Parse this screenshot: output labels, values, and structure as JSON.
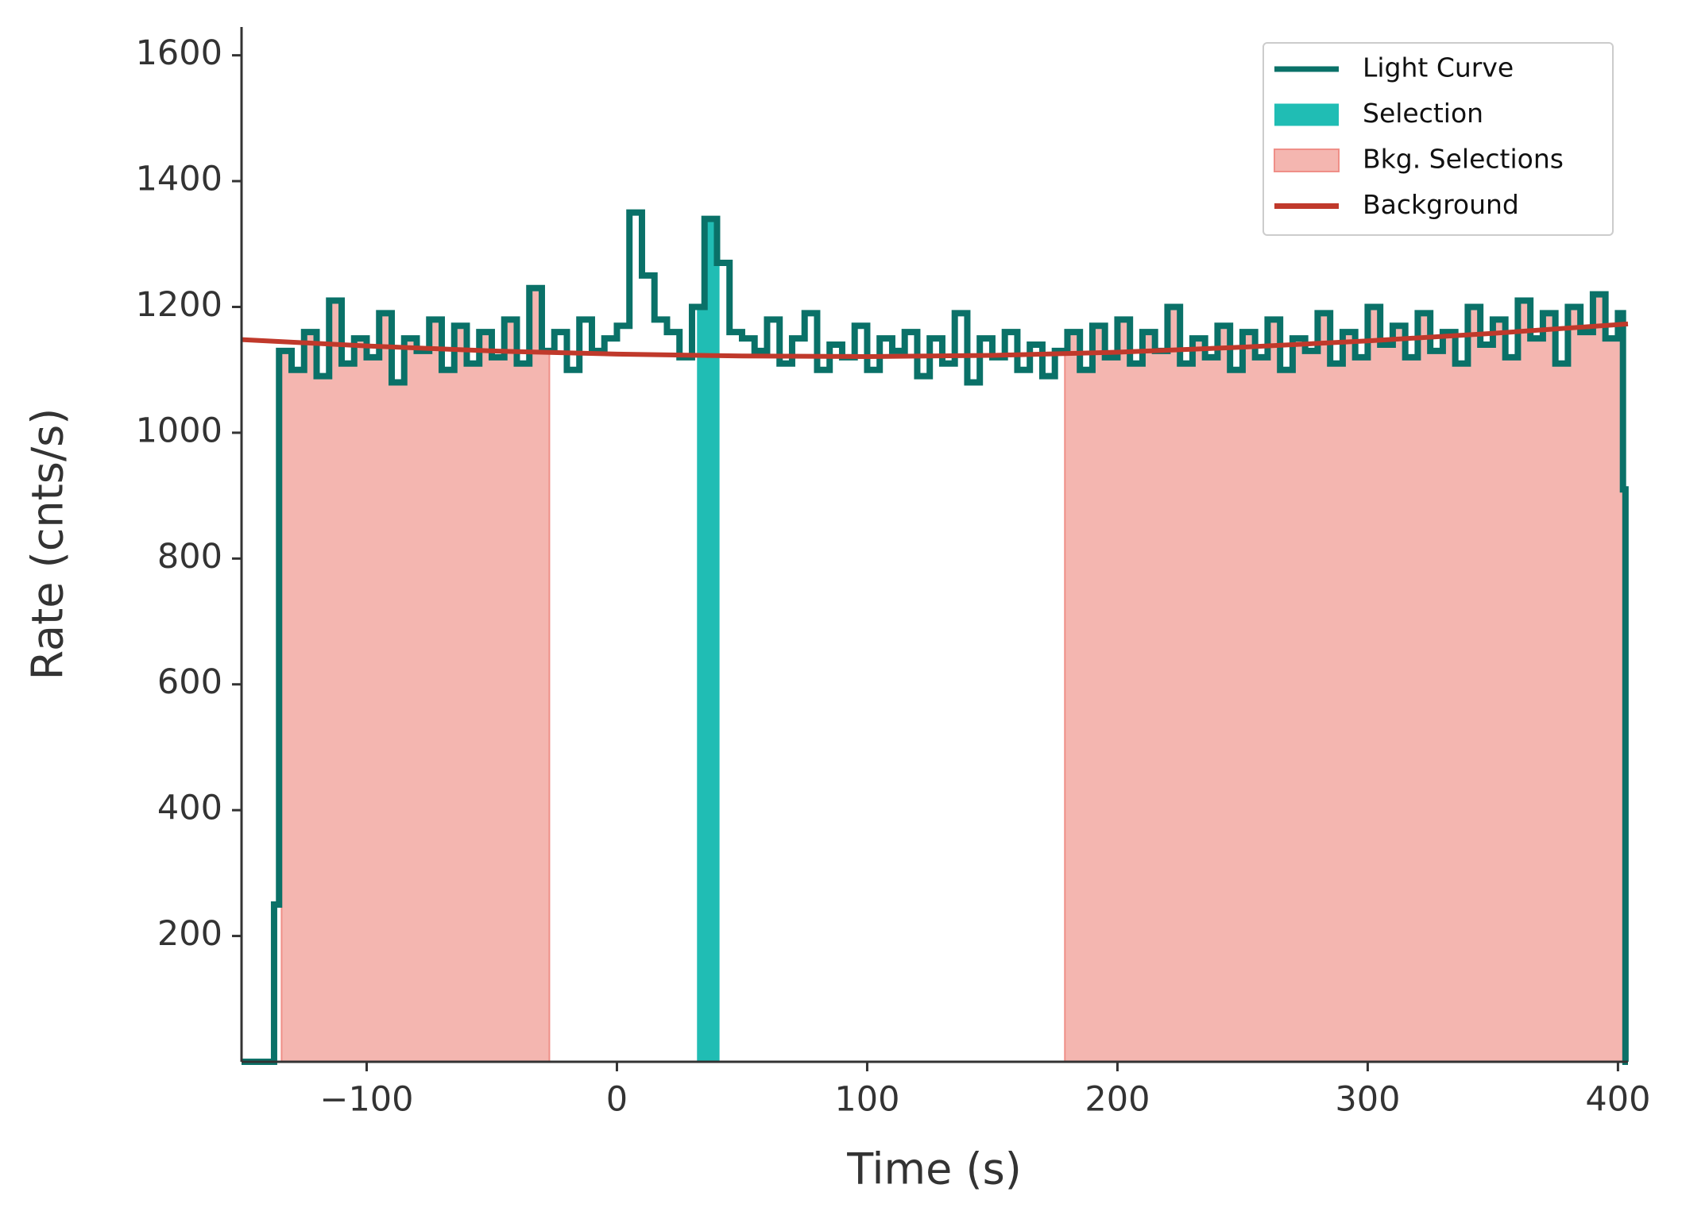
{
  "chart_data": {
    "type": "step",
    "x_label": "Time (s)",
    "y_label": "Rate (cnts/s)",
    "xlim": [
      -150,
      404
    ],
    "ylim": [
      0,
      1645
    ],
    "xticks": [
      {
        "value": -100,
        "label": "−100"
      },
      0,
      100,
      200,
      300,
      400
    ],
    "yticks": [
      200,
      400,
      600,
      800,
      1000,
      1200,
      1400,
      1600
    ],
    "legend": "upper right",
    "light_curve": {
      "name": "Light Curve",
      "color": "#0a7168",
      "x": [
        -150,
        -137,
        -135,
        -130,
        -125,
        -120,
        -115,
        -110,
        -105,
        -100,
        -95,
        -90,
        -85,
        -80,
        -75,
        -70,
        -65,
        -60,
        -55,
        -50,
        -45,
        -40,
        -35,
        -30,
        -25,
        -20,
        -15,
        -10,
        -5,
        0,
        5,
        10,
        15,
        20,
        25,
        30,
        35,
        40,
        45,
        50,
        55,
        60,
        65,
        70,
        75,
        80,
        85,
        90,
        95,
        100,
        105,
        110,
        115,
        120,
        125,
        130,
        135,
        140,
        145,
        150,
        155,
        160,
        165,
        170,
        175,
        180,
        185,
        190,
        195,
        200,
        205,
        210,
        215,
        220,
        225,
        230,
        235,
        240,
        245,
        250,
        255,
        260,
        265,
        270,
        275,
        280,
        285,
        290,
        295,
        300,
        305,
        310,
        315,
        320,
        325,
        330,
        335,
        340,
        345,
        350,
        355,
        360,
        365,
        370,
        375,
        380,
        385,
        390,
        395,
        400,
        402,
        403
      ],
      "values": [
        0,
        250,
        1130,
        1100,
        1160,
        1090,
        1210,
        1110,
        1150,
        1120,
        1190,
        1080,
        1150,
        1130,
        1180,
        1100,
        1170,
        1110,
        1160,
        1120,
        1180,
        1110,
        1230,
        1130,
        1160,
        1100,
        1180,
        1130,
        1150,
        1170,
        1350,
        1250,
        1180,
        1160,
        1120,
        1200,
        1340,
        1270,
        1160,
        1150,
        1130,
        1180,
        1110,
        1150,
        1190,
        1100,
        1140,
        1120,
        1170,
        1100,
        1150,
        1130,
        1160,
        1090,
        1150,
        1110,
        1190,
        1080,
        1150,
        1120,
        1160,
        1100,
        1140,
        1090,
        1130,
        1160,
        1100,
        1170,
        1120,
        1180,
        1110,
        1160,
        1130,
        1200,
        1110,
        1150,
        1120,
        1170,
        1100,
        1160,
        1120,
        1180,
        1100,
        1150,
        1130,
        1190,
        1110,
        1160,
        1120,
        1200,
        1140,
        1170,
        1120,
        1190,
        1130,
        1160,
        1110,
        1200,
        1140,
        1180,
        1120,
        1210,
        1150,
        1190,
        1110,
        1200,
        1160,
        1220,
        1150,
        1190,
        910,
        0
      ]
    },
    "selection": {
      "name": "Selection",
      "color": "#20bdb4",
      "range": [
        32,
        41
      ]
    },
    "bkg_selections": {
      "name": "Bkg. Selections",
      "color": "#f4b6b0",
      "edge": "#ef8f88",
      "ranges": [
        [
          -134,
          -27
        ],
        [
          179,
          402
        ]
      ]
    },
    "background": {
      "name": "Background",
      "color": "#c0392b",
      "x": [
        -150,
        -100,
        -50,
        0,
        50,
        100,
        150,
        200,
        250,
        300,
        350,
        404
      ],
      "values": [
        1148,
        1138,
        1130,
        1125,
        1122,
        1121,
        1123,
        1128,
        1136,
        1146,
        1158,
        1173
      ]
    }
  }
}
